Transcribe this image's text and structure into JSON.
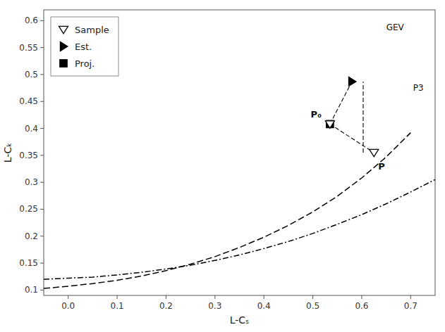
{
  "chart_data": {
    "type": "line",
    "xlabel": "L-Cₛ",
    "ylabel": "L-Cₖ",
    "xlim": [
      -0.05,
      0.75
    ],
    "ylim": [
      0.09,
      0.62
    ],
    "xticks": [
      {
        "value": 0.0,
        "label": "0.0"
      },
      0.1,
      0.2,
      0.3,
      0.4,
      0.5,
      0.6,
      0.7
    ],
    "yticks": [
      0.1,
      0.15,
      0.2,
      0.25,
      0.3,
      0.35,
      0.4,
      0.45,
      0.5,
      0.55,
      0.6
    ],
    "grid": false,
    "legend": "upper left",
    "series": [
      {
        "type": "line",
        "line_style": "dashed",
        "color": "#000000",
        "x": [
          -0.05,
          0.0,
          0.05,
          0.1,
          0.15,
          0.2,
          0.25,
          0.3,
          0.35,
          0.4,
          0.45,
          0.5,
          0.55,
          0.6,
          0.65,
          0.7
        ],
        "values": [
          0.103,
          0.107,
          0.112,
          0.118,
          0.126,
          0.136,
          0.148,
          0.162,
          0.179,
          0.198,
          0.22,
          0.245,
          0.274,
          0.308,
          0.347,
          0.392
        ]
      },
      {
        "type": "line",
        "line_style": "dashdot",
        "color": "#000000",
        "x": [
          -0.05,
          0.0,
          0.05,
          0.1,
          0.15,
          0.2,
          0.25,
          0.3,
          0.35,
          0.4,
          0.45,
          0.5,
          0.55,
          0.6,
          0.65,
          0.7,
          0.75
        ],
        "values": [
          0.12,
          0.122,
          0.124,
          0.128,
          0.133,
          0.139,
          0.146,
          0.155,
          0.165,
          0.177,
          0.19,
          0.205,
          0.222,
          0.24,
          0.26,
          0.282,
          0.305
        ]
      },
      {
        "type": "line",
        "line_style": "dashed",
        "color": "#000000",
        "x": [
          0.603,
          0.603
        ],
        "values": [
          0.355,
          0.487
        ]
      },
      {
        "type": "line",
        "line_style": "dashed",
        "color": "#000000",
        "x": [
          0.535,
          0.58
        ],
        "values": [
          0.408,
          0.487
        ]
      },
      {
        "type": "line",
        "line_style": "dashed",
        "color": "#000000",
        "x": [
          0.535,
          0.625
        ],
        "values": [
          0.408,
          0.355
        ]
      },
      {
        "type": "scatter",
        "name": "Sample",
        "marker": "triangle-down-open",
        "color": "#000000",
        "x": [
          0.535,
          0.625
        ],
        "values": [
          0.408,
          0.355
        ]
      },
      {
        "type": "scatter",
        "name": "Est.",
        "marker": "triangle-right",
        "color": "#000000",
        "x": [
          0.58
        ],
        "values": [
          0.487
        ]
      },
      {
        "type": "scatter",
        "name": "Proj.",
        "marker": "square",
        "color": "#000000",
        "x": [
          0.535
        ],
        "values": [
          0.408
        ]
      }
    ],
    "annotations": [
      {
        "text": "P₀",
        "x": 0.535,
        "y": 0.408,
        "anchor": "upper-left"
      },
      {
        "text": "P",
        "x": 0.625,
        "y": 0.355,
        "anchor": "lower-right"
      },
      {
        "text": "GEV",
        "x": 0.65,
        "y": 0.582,
        "anchor": "right"
      },
      {
        "text": "P3",
        "x": 0.705,
        "y": 0.47,
        "anchor": "right"
      }
    ]
  }
}
